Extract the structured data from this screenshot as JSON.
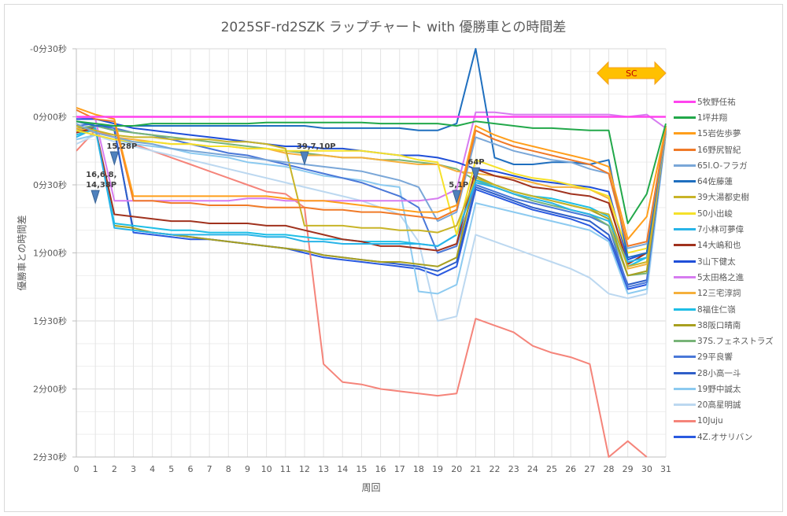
{
  "title": "2025SF-rd2SZK ラップチャート with 優勝車との時間差",
  "chart_data": {
    "type": "line",
    "title": "2025SF-rd2SZK ラップチャート with 優勝車との時間差",
    "xlabel": "周回",
    "ylabel": "優勝車との時間差",
    "x": [
      0,
      1,
      2,
      3,
      4,
      5,
      6,
      7,
      8,
      9,
      10,
      11,
      12,
      13,
      14,
      15,
      16,
      17,
      18,
      19,
      20,
      21,
      22,
      23,
      24,
      25,
      26,
      27,
      28,
      29,
      30,
      31
    ],
    "ylim": [
      -30,
      150
    ],
    "y_inverted": true,
    "y_ticks": [
      {
        "value": -30,
        "label": "-0分30秒"
      },
      {
        "value": 0,
        "label": "0分00秒"
      },
      {
        "value": 30,
        "label": "0分30秒"
      },
      {
        "value": 60,
        "label": "1分00秒"
      },
      {
        "value": 90,
        "label": "1分30秒"
      },
      {
        "value": 120,
        "label": "2分00秒"
      },
      {
        "value": 150,
        "label": "2分30秒"
      }
    ],
    "grid": true,
    "legend_position": "right",
    "series": [
      {
        "name": "5牧野任祐",
        "color": "#ff44ee",
        "width": 2.6,
        "values": [
          0,
          0,
          0,
          0,
          0,
          0,
          0,
          0,
          0,
          0,
          0,
          0,
          0,
          0,
          0,
          0,
          0,
          0,
          0,
          0,
          0,
          0,
          0,
          0,
          0,
          0,
          0,
          0,
          0,
          0,
          0,
          0
        ]
      },
      {
        "name": "1坪井翔",
        "color": "#22a84a",
        "width": 2,
        "values": [
          2,
          3,
          4,
          4,
          3,
          3,
          3,
          3,
          3,
          3,
          2.5,
          2.5,
          2.5,
          2.5,
          2.5,
          2.5,
          3,
          3,
          3,
          3,
          4,
          2,
          3,
          4,
          5,
          5,
          5.5,
          6,
          6,
          47,
          34,
          3
        ]
      },
      {
        "name": "15岩佐歩夢",
        "color": "#ff9e1b",
        "width": 2,
        "values": [
          -4,
          -1,
          1,
          35,
          35,
          35,
          35,
          35,
          35,
          35,
          35,
          36,
          37,
          37,
          38,
          39,
          40,
          41,
          42,
          42,
          39,
          4,
          8,
          11,
          13,
          15,
          17,
          19,
          22,
          54,
          44,
          5
        ]
      },
      {
        "name": "16野尻智紀",
        "color": "#f07a28",
        "width": 2,
        "values": [
          -3,
          1,
          2,
          37,
          37,
          38,
          38,
          39,
          39,
          39,
          40,
          40,
          40,
          41,
          41,
          42,
          42,
          43,
          44,
          45,
          41,
          6,
          10,
          13,
          15,
          17,
          19,
          21,
          25,
          57,
          55,
          5
        ]
      },
      {
        "name": "65I.O-フラガ",
        "color": "#7aa7d8",
        "width": 2,
        "values": [
          3,
          7,
          9,
          11,
          12,
          14,
          15,
          16,
          17,
          18,
          19,
          20,
          21,
          22,
          23,
          24,
          26,
          28,
          31,
          46,
          42,
          9,
          12,
          15,
          17,
          19,
          20,
          23,
          25,
          58,
          56,
          6
        ]
      },
      {
        "name": "64佐藤蓮",
        "color": "#1f6fbf",
        "width": 2,
        "values": [
          2,
          4,
          4,
          4,
          4,
          4,
          4,
          4,
          4,
          4,
          4,
          4,
          4,
          5,
          5,
          5,
          5,
          5,
          6,
          6,
          3,
          -31,
          18,
          21,
          21,
          20,
          20,
          21,
          19,
          62,
          60,
          5
        ]
      },
      {
        "name": "39大湯都史樹",
        "color": "#c8b428",
        "width": 2,
        "values": [
          4,
          6,
          8,
          9,
          9,
          10,
          10,
          10,
          11,
          11,
          12,
          14,
          48,
          48,
          48,
          49,
          49,
          50,
          50,
          51,
          48,
          27,
          30,
          33,
          35,
          37,
          39,
          41,
          43,
          66,
          64,
          4
        ]
      },
      {
        "name": "50小出峻",
        "color": "#f5e12a",
        "width": 2,
        "values": [
          6,
          8,
          10,
          11,
          11,
          12,
          12,
          13,
          13,
          14,
          14,
          15,
          15,
          15,
          15,
          15,
          16,
          17,
          19,
          20,
          52,
          19,
          22,
          25,
          27,
          28,
          30,
          32,
          35,
          60,
          58,
          5
        ]
      },
      {
        "name": "7小林可夢偉",
        "color": "#28b4e8",
        "width": 2,
        "values": [
          9,
          5,
          49,
          50,
          51,
          52,
          52,
          52,
          52,
          52,
          53,
          53,
          55,
          55,
          56,
          56,
          56,
          56,
          56,
          57,
          52,
          29,
          31,
          34,
          36,
          38,
          41,
          43,
          46,
          64,
          62,
          6
        ]
      },
      {
        "name": "14大嶋和也",
        "color": "#a0321e",
        "width": 2,
        "values": [
          7,
          5,
          43,
          44,
          45,
          46,
          46,
          47,
          47,
          47,
          48,
          48,
          50,
          52,
          54,
          55,
          57,
          57,
          58,
          59,
          56,
          23,
          26,
          28,
          31,
          32,
          34,
          35,
          38,
          65,
          60,
          4
        ]
      },
      {
        "name": "3山下健太",
        "color": "#1f4fd8",
        "width": 2,
        "values": [
          1,
          1,
          3,
          5,
          6,
          7,
          8,
          9,
          10,
          11,
          12,
          13,
          13,
          14,
          14,
          15,
          16,
          17,
          17,
          18,
          20,
          23,
          24,
          26,
          28,
          29,
          30,
          31,
          33,
          63,
          60,
          6
        ]
      },
      {
        "name": "5太田格之進",
        "color": "#d67cf0",
        "width": 2,
        "values": [
          0,
          1,
          37,
          37,
          37,
          37,
          37,
          37,
          37,
          36,
          36,
          37,
          37,
          37,
          37,
          37,
          37,
          37,
          37,
          36,
          32,
          -2,
          -2,
          -1,
          -1,
          -1,
          -1,
          -1,
          -1,
          0,
          -1,
          5
        ]
      },
      {
        "name": "12三宅淳詞",
        "color": "#f5b03c",
        "width": 2,
        "values": [
          5,
          7,
          9,
          10,
          11,
          12,
          12,
          13,
          13,
          14,
          14,
          16,
          17,
          17,
          18,
          18,
          19,
          20,
          21,
          21,
          24,
          25,
          26,
          27,
          29,
          31,
          31,
          32,
          36,
          67,
          65,
          7
        ]
      },
      {
        "name": "8福住仁嶺",
        "color": "#1ebee6",
        "width": 2,
        "values": [
          8,
          5,
          47,
          48,
          49,
          50,
          50,
          51,
          51,
          51,
          52,
          52,
          53,
          54,
          54,
          55,
          55,
          55,
          56,
          57,
          52,
          28,
          30,
          33,
          35,
          36,
          38,
          40,
          44,
          66,
          62,
          6
        ]
      },
      {
        "name": "38阪口晴南",
        "color": "#a8a020",
        "width": 2,
        "values": [
          6,
          5,
          48,
          49,
          51,
          52,
          53,
          54,
          55,
          56,
          57,
          58,
          59,
          61,
          62,
          63,
          64,
          64,
          65,
          66,
          62,
          26,
          30,
          33,
          35,
          37,
          39,
          41,
          45,
          70,
          68,
          5
        ]
      },
      {
        "name": "37S.フェネストラズ",
        "color": "#78b478",
        "width": 2,
        "values": [
          5,
          4,
          6,
          7,
          8,
          9,
          10,
          11,
          12,
          13,
          14,
          15,
          16,
          17,
          18,
          18,
          19,
          19,
          20,
          21,
          23,
          28,
          31,
          34,
          37,
          39,
          41,
          43,
          48,
          70,
          69,
          6
        ]
      },
      {
        "name": "29平良響",
        "color": "#4a78d8",
        "width": 2,
        "values": [
          4,
          3,
          5,
          7,
          8,
          10,
          12,
          14,
          16,
          17,
          19,
          21,
          23,
          25,
          27,
          29,
          32,
          35,
          40,
          60,
          57,
          30,
          33,
          36,
          38,
          40,
          42,
          44,
          48,
          75,
          73,
          6
        ]
      },
      {
        "name": "28小高一斗",
        "color": "#2f5fc8",
        "width": 2,
        "values": [
          6,
          4,
          6,
          50,
          51,
          52,
          53,
          54,
          55,
          56,
          57,
          58,
          59,
          61,
          62,
          63,
          64,
          65,
          66,
          68,
          64,
          31,
          34,
          37,
          40,
          42,
          44,
          46,
          52,
          74,
          72,
          7
        ]
      },
      {
        "name": "19野中誠太",
        "color": "#8ccaf0",
        "width": 2,
        "values": [
          10,
          8,
          10,
          12,
          13,
          14,
          16,
          17,
          18,
          20,
          21,
          22,
          24,
          26,
          27,
          28,
          30,
          31,
          77,
          78,
          74,
          38,
          40,
          42,
          44,
          46,
          48,
          50,
          55,
          78,
          76,
          7
        ]
      },
      {
        "name": "20高星明誠",
        "color": "#bcd8f0",
        "width": 2,
        "values": [
          12,
          8,
          11,
          13,
          15,
          17,
          19,
          21,
          23,
          25,
          27,
          29,
          31,
          33,
          35,
          37,
          40,
          43,
          55,
          90,
          88,
          52,
          55,
          58,
          61,
          64,
          67,
          71,
          78,
          80,
          78,
          8
        ]
      },
      {
        "name": "10Juju",
        "color": "#f5847a",
        "width": 2,
        "values": [
          15,
          6,
          9,
          12,
          15,
          18,
          21,
          24,
          27,
          30,
          33,
          34,
          40,
          109,
          117,
          118,
          120,
          121,
          122,
          123,
          122,
          89,
          92,
          95,
          101,
          104,
          106,
          109,
          150,
          143,
          150,
          null
        ]
      },
      {
        "name": "4Z.オサリバン",
        "color": "#2a5ae0",
        "width": 2,
        "values": [
          7,
          4,
          5,
          51,
          52,
          53,
          54,
          54,
          55,
          56,
          57,
          58,
          60,
          62,
          63,
          64,
          65,
          66,
          67,
          70,
          66,
          32,
          35,
          38,
          41,
          43,
          45,
          48,
          54,
          76,
          74,
          6
        ]
      }
    ],
    "annotations": [
      {
        "type": "pit-marker",
        "lap": 1,
        "label_lines": [
          "16,6,8,",
          "14,38P"
        ],
        "marker_y": 38
      },
      {
        "type": "pit-marker",
        "lap": 2,
        "label_lines": [
          "15,28P"
        ],
        "marker_y": 21
      },
      {
        "type": "pit-marker",
        "lap": 12,
        "label_lines": [
          "39,7,10P"
        ],
        "marker_y": 21
      },
      {
        "type": "pit-marker",
        "lap": 20,
        "label_lines": [
          "5,1P"
        ],
        "marker_y": 38
      },
      {
        "type": "pit-marker",
        "lap": 21,
        "label_lines": [
          "64P"
        ],
        "marker_y": 28
      },
      {
        "type": "sc-arrow",
        "from_lap": 27.6,
        "to_lap": 31,
        "label": "SC"
      }
    ]
  }
}
